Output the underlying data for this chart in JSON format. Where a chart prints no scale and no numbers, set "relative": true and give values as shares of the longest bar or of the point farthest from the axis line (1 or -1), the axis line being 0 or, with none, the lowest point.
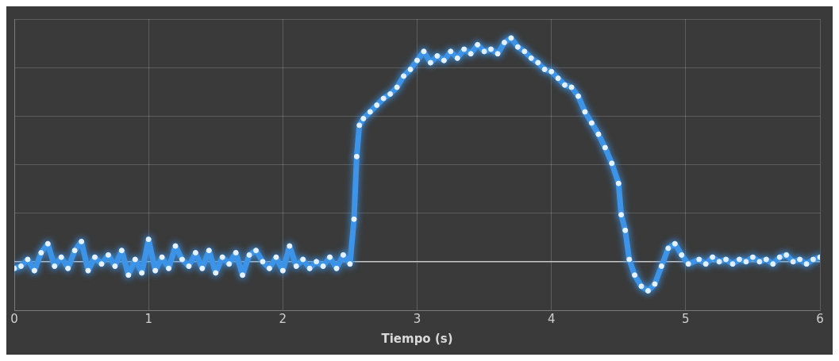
{
  "chart_data": {
    "type": "line",
    "xlabel": "Tiempo (s)",
    "relative": true,
    "xlim": [
      0,
      6
    ],
    "xticks": [
      0,
      1,
      2,
      3,
      4,
      5,
      6
    ],
    "grid": true,
    "legend": false,
    "marker": "circle",
    "line_style": "solid",
    "x": [
      0,
      0.05,
      0.1,
      0.15,
      0.2,
      0.25,
      0.3,
      0.35,
      0.4,
      0.45,
      0.5,
      0.55,
      0.6,
      0.65,
      0.7,
      0.75,
      0.8,
      0.85,
      0.9,
      0.95,
      1,
      1.05,
      1.1,
      1.15,
      1.2,
      1.25,
      1.3,
      1.35,
      1.4,
      1.45,
      1.5,
      1.55,
      1.6,
      1.65,
      1.7,
      1.75,
      1.8,
      1.85,
      1.9,
      1.95,
      2,
      2.05,
      2.1,
      2.15,
      2.2,
      2.25,
      2.3,
      2.35,
      2.4,
      2.45,
      2.5,
      2.53,
      2.55,
      2.57,
      2.6,
      2.65,
      2.7,
      2.75,
      2.8,
      2.85,
      2.9,
      2.95,
      3,
      3.05,
      3.1,
      3.15,
      3.2,
      3.25,
      3.3,
      3.35,
      3.4,
      3.45,
      3.5,
      3.55,
      3.6,
      3.65,
      3.7,
      3.75,
      3.8,
      3.85,
      3.9,
      3.95,
      4,
      4.05,
      4.1,
      4.15,
      4.2,
      4.25,
      4.3,
      4.35,
      4.4,
      4.45,
      4.5,
      4.52,
      4.55,
      4.58,
      4.62,
      4.67,
      4.72,
      4.77,
      4.82,
      4.87,
      4.92,
      4.97,
      5.02,
      5.1,
      5.15,
      5.2,
      5.25,
      5.3,
      5.35,
      5.4,
      5.45,
      5.5,
      5.55,
      5.6,
      5.65,
      5.7,
      5.75,
      5.8,
      5.85,
      5.9,
      5.95,
      6
    ],
    "series": [
      {
        "color": "#3d94e8",
        "values": [
          -0.03,
          -0.02,
          0.01,
          -0.04,
          0.04,
          0.08,
          -0.02,
          0.02,
          -0.03,
          0.05,
          0.09,
          -0.04,
          0.02,
          -0.01,
          0.03,
          -0.02,
          0.05,
          -0.06,
          0.01,
          -0.05,
          0.1,
          -0.04,
          0.02,
          -0.03,
          0.07,
          0.01,
          -0.02,
          0.04,
          -0.03,
          0.05,
          -0.05,
          0.02,
          -0.01,
          0.04,
          -0.06,
          0.03,
          0.05,
          0,
          -0.03,
          0.02,
          -0.04,
          0.07,
          -0.02,
          0.01,
          -0.03,
          0,
          -0.02,
          0.02,
          -0.03,
          0.03,
          -0.01,
          0.19,
          0.47,
          0.61,
          0.64,
          0.67,
          0.7,
          0.73,
          0.75,
          0.78,
          0.83,
          0.86,
          0.9,
          0.94,
          0.89,
          0.92,
          0.9,
          0.94,
          0.91,
          0.95,
          0.93,
          0.97,
          0.94,
          0.95,
          0.93,
          0.98,
          1,
          0.96,
          0.94,
          0.91,
          0.89,
          0.86,
          0.85,
          0.82,
          0.79,
          0.78,
          0.74,
          0.67,
          0.62,
          0.57,
          0.51,
          0.44,
          0.35,
          0.21,
          0.14,
          0.01,
          -0.06,
          -0.11,
          -0.13,
          -0.1,
          -0.02,
          0.06,
          0.08,
          0.03,
          -0.01,
          0.01,
          -0.01,
          0.02,
          0,
          0.01,
          -0.01,
          0.01,
          0,
          0.02,
          0,
          0.01,
          -0.01,
          0.02,
          0.03,
          0,
          0.01,
          -0.01,
          0.01,
          0.02
        ]
      }
    ]
  }
}
